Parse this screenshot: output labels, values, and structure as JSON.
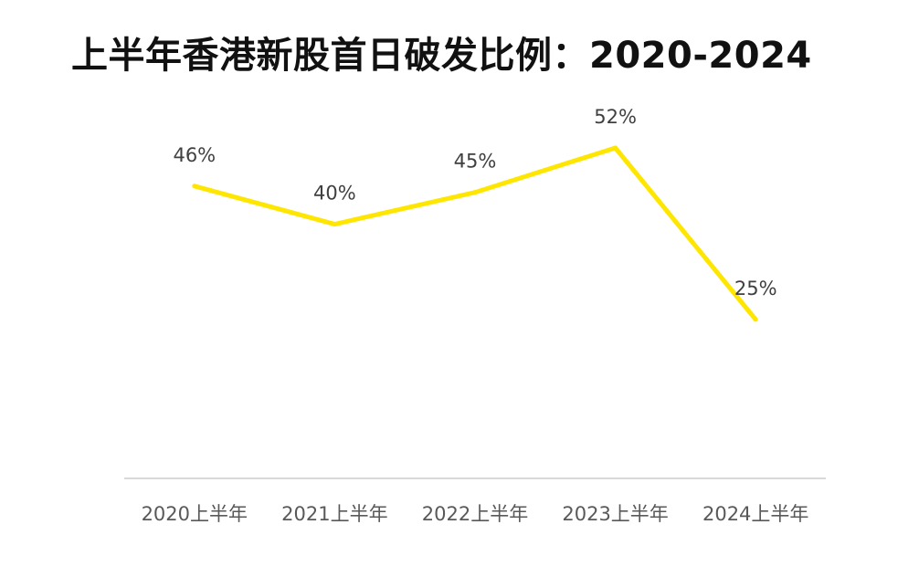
{
  "chart_data": {
    "type": "line",
    "title": "上半年香港新股首日破发比例：2020-2024",
    "xlabel": "",
    "ylabel": "",
    "categories": [
      "2020上半年",
      "2021上半年",
      "2022上半年",
      "2023上半年",
      "2024上半年"
    ],
    "values": [
      46,
      40,
      45,
      52,
      25
    ],
    "data_labels": [
      "46%",
      "40%",
      "45%",
      "52%",
      "25%"
    ],
    "unit": "%",
    "ylim": [
      0,
      60
    ],
    "grid": false,
    "legend": "none",
    "y_axis_visible": false,
    "line_color": "#FFE600",
    "axis_color": "#D9D9D9"
  }
}
